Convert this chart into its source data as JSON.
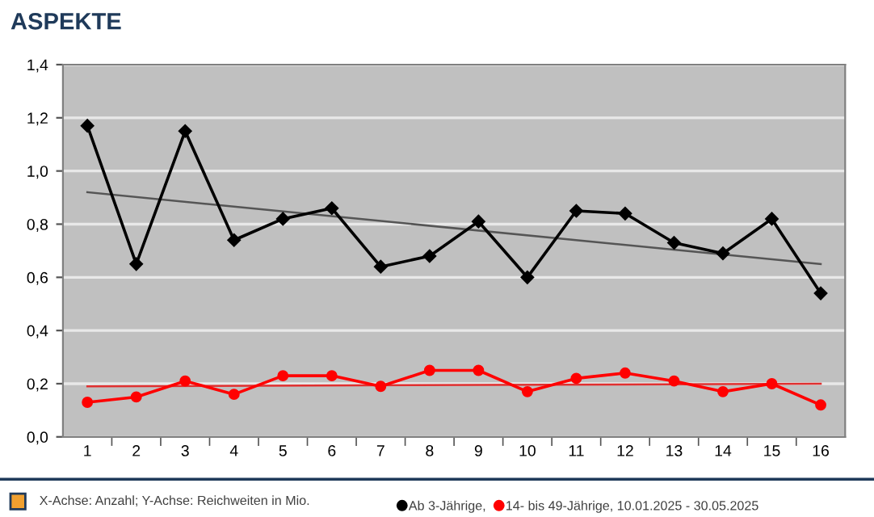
{
  "chart_data": {
    "type": "line",
    "title": "ASPEKTE",
    "categories": [
      "1",
      "2",
      "3",
      "4",
      "5",
      "6",
      "7",
      "8",
      "9",
      "10",
      "11",
      "12",
      "13",
      "14",
      "15",
      "16"
    ],
    "series": [
      {
        "name": "Ab 3-Jährige,",
        "color": "#000000",
        "marker": "diamond",
        "values": [
          1.17,
          0.65,
          1.15,
          0.74,
          0.82,
          0.86,
          0.64,
          0.68,
          0.81,
          0.6,
          0.85,
          0.84,
          0.73,
          0.69,
          0.82,
          0.54
        ]
      },
      {
        "name": "14- bis 49-Jährige, 10.01.2025 - 30.05.2025",
        "color": "#ff0000",
        "marker": "circle",
        "values": [
          0.13,
          0.15,
          0.21,
          0.16,
          0.23,
          0.23,
          0.19,
          0.25,
          0.25,
          0.17,
          0.22,
          0.24,
          0.21,
          0.17,
          0.2,
          0.12
        ]
      },
      {
        "type": "line",
        "color": "#555555",
        "marker": "none",
        "x": [
          "1",
          "16"
        ],
        "values": [
          0.92,
          0.65
        ]
      },
      {
        "type": "line",
        "color": "#e03030",
        "marker": "none",
        "x": [
          "1",
          "16"
        ],
        "values": [
          0.19,
          0.2
        ]
      }
    ],
    "ylim": [
      0,
      1.4
    ],
    "yticks": [
      {
        "value": 0,
        "label": "0,0"
      },
      {
        "value": 0.2,
        "label": "0,2"
      },
      {
        "value": 0.4,
        "label": "0,4"
      },
      {
        "value": 0.6,
        "label": "0,6"
      },
      {
        "value": 0.8,
        "label": "0,8"
      },
      {
        "value": 1.0,
        "label": "1,0"
      },
      {
        "value": 1.2,
        "label": "1,2"
      },
      {
        "value": 1.4,
        "label": "1,4"
      }
    ],
    "grid": "y",
    "legend": "bottom",
    "line_style": "solid",
    "annotations": [
      "X-Achse: Anzahl; Y-Achse: Reichweiten in Mio."
    ]
  }
}
